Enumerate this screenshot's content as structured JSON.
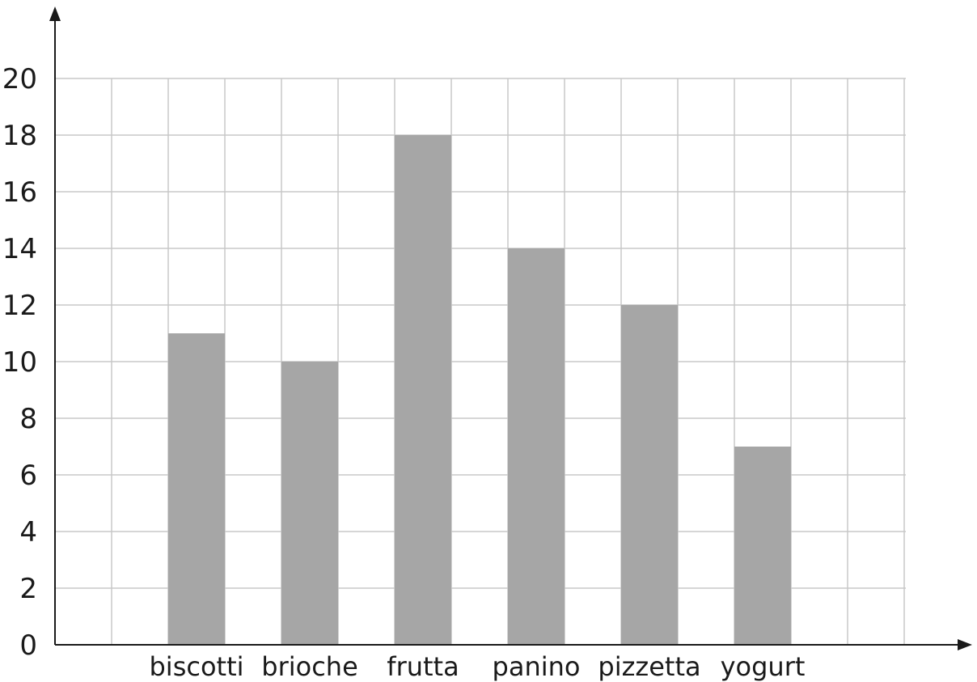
{
  "chart_data": {
    "type": "bar",
    "title": "",
    "xlabel": "",
    "ylabel": "",
    "categories": [
      "biscotti",
      "brioche",
      "frutta",
      "panino",
      "pizzetta",
      "yogurt"
    ],
    "values": [
      11,
      10,
      18,
      14,
      12,
      7
    ],
    "ylim": [
      0,
      20
    ],
    "yticks": [
      0,
      2,
      4,
      6,
      8,
      10,
      12,
      14,
      16,
      18,
      20
    ],
    "grid": true,
    "bar_color": "#a6a6a6",
    "grid_color": "#c8c8c8",
    "axis_color": "#1a1a1a"
  }
}
